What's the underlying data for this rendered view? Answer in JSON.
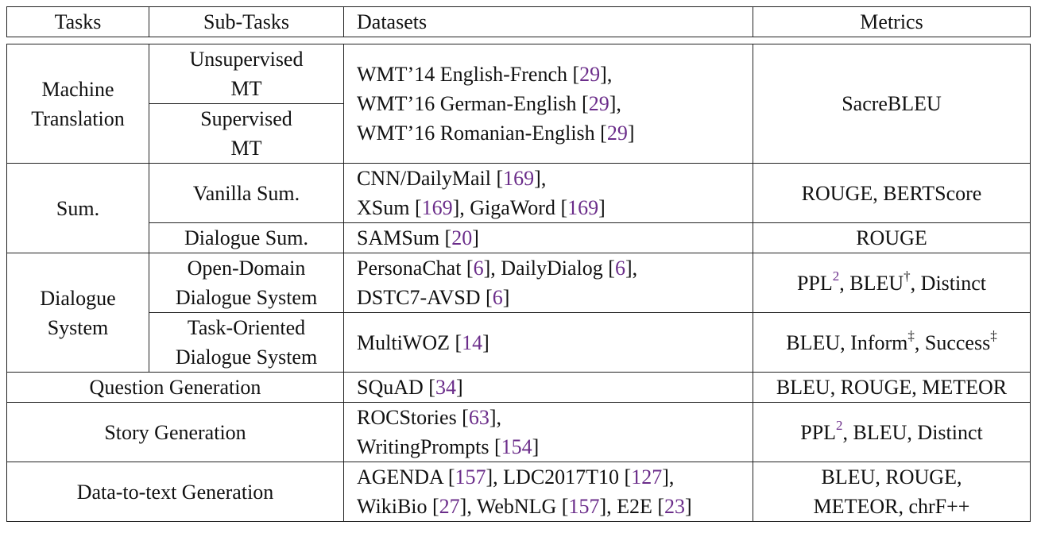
{
  "header": {
    "tasks": "Tasks",
    "subtasks": "Sub-Tasks",
    "datasets": "Datasets",
    "metrics": "Metrics"
  },
  "mt": {
    "task": [
      "Machine",
      "Translation"
    ],
    "sub1": [
      "Unsupervised",
      "MT"
    ],
    "sub2": [
      "Supervised",
      "MT"
    ],
    "data": [
      {
        "t": "WMT’14 English-French [",
        "c": "29",
        "e": "],"
      },
      {
        "t": "WMT’16 German-English [",
        "c": "29",
        "e": "],"
      },
      {
        "t": "WMT’16 Romanian-English [",
        "c": "29",
        "e": "]"
      }
    ],
    "metric": "SacreBLEU"
  },
  "sum": {
    "task": "Sum.",
    "vanilla": "Vanilla Sum.",
    "vanilla_data": {
      "l1a": "CNN/DailyMail [",
      "l1c": "169",
      "l1e": "],",
      "l2a": "XSum [",
      "l2c": "169",
      "l2b": "], GigaWord [",
      "l2c2": "169",
      "l2e": "]"
    },
    "vanilla_metric": "ROUGE, BERTScore",
    "dialogue": "Dialogue Sum.",
    "dialogue_data": {
      "a": "SAMSum [",
      "c": "20",
      "e": "]"
    },
    "dialogue_metric": "ROUGE"
  },
  "ds": {
    "task": [
      "Dialogue",
      "System"
    ],
    "open": [
      "Open-Domain",
      "Dialogue System"
    ],
    "open_data": {
      "l1a": "PersonaChat [",
      "l1c": "6",
      "l1b": "], DailyDialog [",
      "l1c2": "6",
      "l1e": "],",
      "l2a": "DSTC7-AVSD [",
      "l2c": "6",
      "l2e": "]"
    },
    "open_metric": {
      "a": "PPL",
      "sup1": "2",
      "b": ", BLEU",
      "sup2": "†",
      "c": ", Distinct"
    },
    "task_oriented": [
      "Task-Oriented",
      "Dialogue System"
    ],
    "to_data": {
      "a": "MultiWOZ [",
      "c": "14",
      "e": "]"
    },
    "to_metric": {
      "a": "BLEU, Inform",
      "sup1": "‡",
      "b": ", Success",
      "sup2": "‡"
    }
  },
  "qg": {
    "task": "Question Generation",
    "data": {
      "a": "SQuAD [",
      "c": "34",
      "e": "]"
    },
    "metric": "BLEU, ROUGE, METEOR"
  },
  "sg": {
    "task": "Story Generation",
    "data": {
      "l1a": "ROCStories [",
      "l1c": "63",
      "l1e": "],",
      "l2a": "WritingPrompts [",
      "l2c": "154",
      "l2e": "]"
    },
    "metric": {
      "a": "PPL",
      "sup": "2",
      "b": ", BLEU, Distinct"
    }
  },
  "d2t": {
    "task": "Data-to-text Generation",
    "data": {
      "l1a": "AGENDA [",
      "l1c": "157",
      "l1b": "], LDC2017T10 [",
      "l1c2": "127",
      "l1e": "],",
      "l2a": "WikiBio [",
      "l2c": "27",
      "l2b": "], WebNLG [",
      "l2c2": "157",
      "l2b2": "], E2E [",
      "l2c3": "23",
      "l2e": "]"
    },
    "metric": [
      "BLEU, ROUGE,",
      "METEOR, chrF++"
    ]
  }
}
